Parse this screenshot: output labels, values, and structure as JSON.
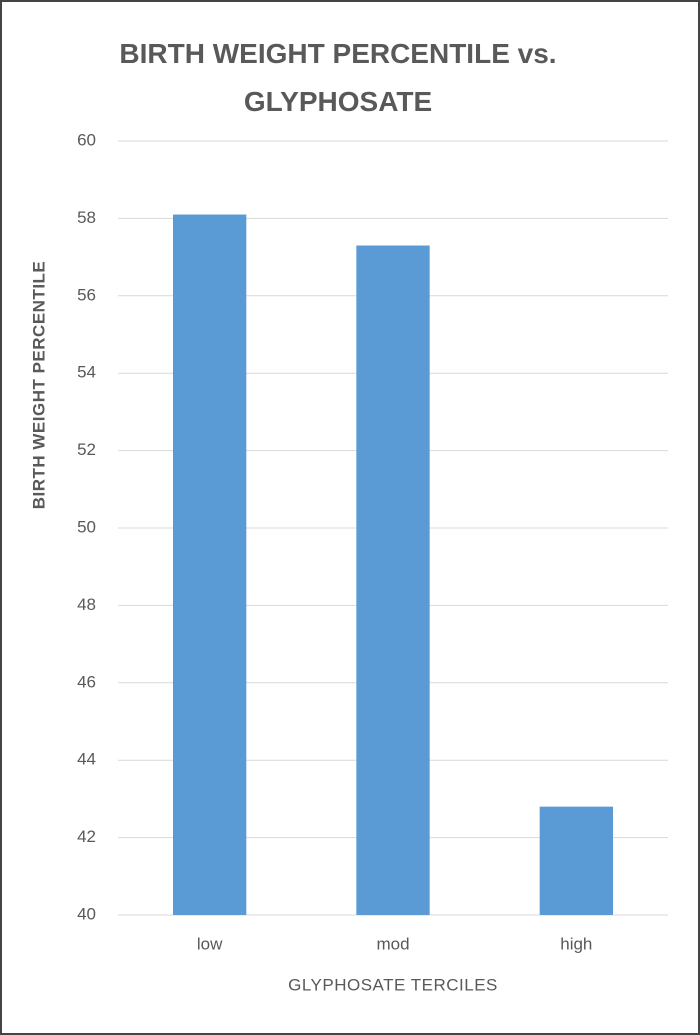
{
  "chart_data": {
    "type": "bar",
    "title": "BIRTH WEIGHT PERCENTILE vs. GLYPHOSATE",
    "x_label": "GLYPHOSATE TERCILES",
    "y_label": "BIRTH WEIGHT PERCENTILE",
    "categories": [
      "low",
      "mod",
      "high"
    ],
    "values": [
      58.1,
      57.3,
      42.8
    ],
    "color": "#5b9bd5",
    "ylim": [
      40,
      60
    ],
    "yticks": [
      40,
      42,
      44,
      46,
      48,
      50,
      52,
      54,
      56,
      58,
      60
    ],
    "grid": true
  }
}
